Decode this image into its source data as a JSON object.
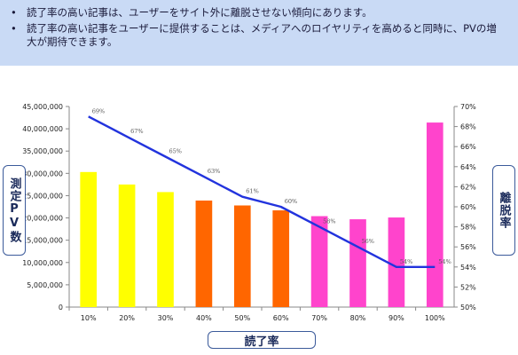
{
  "notes": [
    "読了率の高い記事は、ユーザーをサイト外に離脱させない傾向にあります。",
    "読了率の高い記事をユーザーに提供することは、メディアへのロイヤリティを高めると同時に、PVの増大が期待できます。"
  ],
  "bullet": "•",
  "chart_data": {
    "type": "bar",
    "categories": [
      "10%",
      "20%",
      "30%",
      "40%",
      "50%",
      "60%",
      "70%",
      "80%",
      "90%",
      "100%"
    ],
    "xlabel": "読了率",
    "ylabel": "測定PV数",
    "y2label": "離脱率",
    "ylim": [
      0,
      45000000
    ],
    "yticks": [
      "0",
      "5,000,000",
      "10,000,000",
      "15,000,000",
      "20,000,000",
      "25,000,000",
      "30,000,000",
      "35,000,000",
      "40,000,000",
      "45,000,000"
    ],
    "y2lim": [
      50,
      70
    ],
    "y2ticks": [
      "50%",
      "52%",
      "54%",
      "56%",
      "58%",
      "60%",
      "62%",
      "64%",
      "66%",
      "68%",
      "70%"
    ],
    "series": [
      {
        "kind": "bar",
        "values": [
          30300000,
          27500000,
          25800000,
          23900000,
          22800000,
          21700000,
          20400000,
          19700000,
          20100000,
          41400000
        ],
        "colors": [
          "#ffff00",
          "#ffff00",
          "#ffff00",
          "#ff6600",
          "#ff6600",
          "#ff6600",
          "#ff44cc",
          "#ff44cc",
          "#ff44cc",
          "#ff44cc"
        ]
      },
      {
        "kind": "line",
        "axis": "right",
        "values": [
          69,
          67,
          65,
          63,
          61,
          60,
          58,
          56,
          54,
          54
        ],
        "labels": [
          "69%",
          "67%",
          "65%",
          "63%",
          "61%",
          "60%",
          "58%",
          "56%",
          "54%",
          "54%"
        ],
        "color": "#2233dd"
      }
    ],
    "grid": false,
    "legend": "none"
  }
}
